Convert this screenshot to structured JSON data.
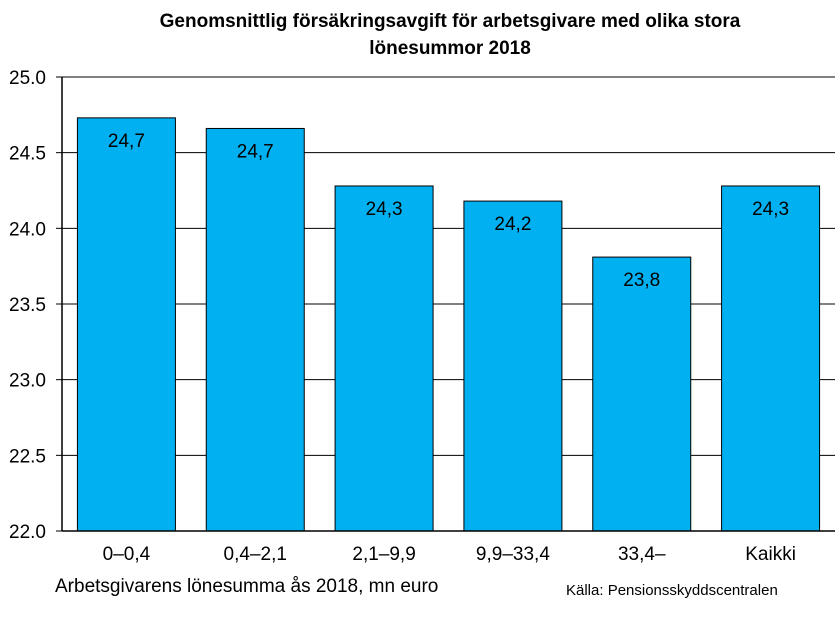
{
  "chart_data": {
    "type": "bar",
    "title_lines": [
      "Genomsnittlig försäkringsavgift för arbetsgivare med olika stora",
      "lönesummor 2018"
    ],
    "xlabel": "Arbetsgivarens lönesumma ås 2018, mn euro",
    "ylabel": "",
    "source": "Källa: Pensionsskyddscentralen",
    "categories": [
      "0–0,4",
      "0,4–2,1",
      "2,1–9,9",
      "9,9–33,4",
      "33,4–",
      "Kaikki"
    ],
    "values": [
      24.73,
      24.66,
      24.28,
      24.18,
      23.81,
      24.28
    ],
    "data_labels": [
      "24,7",
      "24,7",
      "24,3",
      "24,2",
      "23,8",
      "24,3"
    ],
    "ylim": [
      22.0,
      25.0
    ],
    "yticks": [
      22.0,
      22.5,
      23.0,
      23.5,
      24.0,
      24.5,
      25.0
    ],
    "ytick_labels": [
      "22.0",
      "22.5",
      "23.0",
      "23.5",
      "24.0",
      "24.5",
      "25.0"
    ],
    "grid": true,
    "legend": "none",
    "bar_color": "#00B0F0",
    "bar_edge_color": "#000000"
  }
}
